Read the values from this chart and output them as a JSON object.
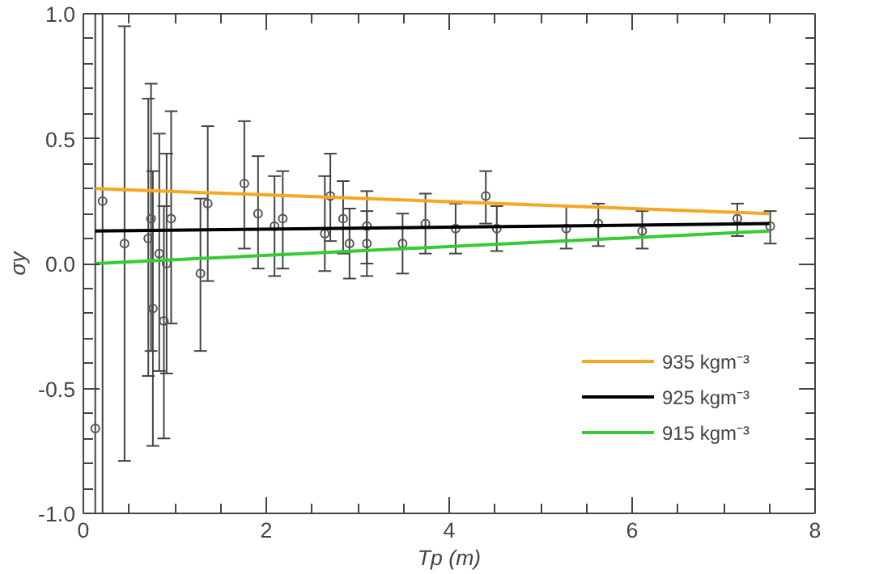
{
  "chart_data": {
    "type": "scatter",
    "xlabel": "Tp (m)",
    "ylabel": "σy",
    "xlim": [
      0,
      8
    ],
    "ylim": [
      -1.0,
      1.0
    ],
    "xticks": [
      0,
      {
        "value": 0.5,
        "label": null
      },
      {
        "value": 1,
        "label": null
      },
      {
        "value": 1.5,
        "label": null
      },
      2,
      {
        "value": 2.5,
        "label": null
      },
      {
        "value": 3,
        "label": null
      },
      {
        "value": 3.5,
        "label": null
      },
      4,
      {
        "value": 4.5,
        "label": null
      },
      {
        "value": 5,
        "label": null
      },
      {
        "value": 5.5,
        "label": null
      },
      6,
      {
        "value": 6.5,
        "label": null
      },
      {
        "value": 7,
        "label": null
      },
      {
        "value": 7.5,
        "label": null
      },
      8
    ],
    "yticks": [
      {
        "value": -1.0,
        "label": "-1.0"
      },
      {
        "value": -0.9,
        "label": null
      },
      {
        "value": -0.8,
        "label": null
      },
      {
        "value": -0.7,
        "label": null
      },
      {
        "value": -0.6,
        "label": null
      },
      {
        "value": -0.5,
        "label": "-0.5"
      },
      {
        "value": -0.4,
        "label": null
      },
      {
        "value": -0.3,
        "label": null
      },
      {
        "value": -0.2,
        "label": null
      },
      {
        "value": -0.1,
        "label": null
      },
      {
        "value": 0.0,
        "label": "0.0"
      },
      {
        "value": 0.1,
        "label": null
      },
      {
        "value": 0.2,
        "label": null
      },
      {
        "value": 0.3,
        "label": null
      },
      {
        "value": 0.4,
        "label": null
      },
      {
        "value": 0.5,
        "label": "0.5"
      },
      {
        "value": 0.6,
        "label": null
      },
      {
        "value": 0.7,
        "label": null
      },
      {
        "value": 0.8,
        "label": null
      },
      {
        "value": 0.9,
        "label": null
      },
      {
        "value": 1.0,
        "label": "1.0"
      }
    ],
    "grid": false,
    "legend": "bottom right",
    "series": [
      {
        "color": "#555555",
        "marker": "circle",
        "x": [
          0.13,
          0.21,
          0.45,
          0.71,
          0.74,
          0.76,
          0.83,
          0.88,
          0.91,
          0.96,
          1.28,
          1.36,
          1.76,
          1.91,
          2.09,
          2.18,
          2.64,
          2.7,
          2.84,
          2.91,
          3.1,
          3.1,
          3.49,
          3.74,
          4.07,
          4.4,
          4.52,
          5.28,
          5.63,
          6.11,
          7.15,
          7.51
        ],
        "values": [
          -0.66,
          0.25,
          0.08,
          0.1,
          0.18,
          -0.18,
          0.04,
          -0.23,
          0.0,
          0.18,
          -0.04,
          0.24,
          0.32,
          0.2,
          0.15,
          0.18,
          0.12,
          0.27,
          0.18,
          0.08,
          0.15,
          0.08,
          0.08,
          0.16,
          0.14,
          0.27,
          0.14,
          0.14,
          0.16,
          0.13,
          0.18,
          0.15
        ],
        "errors": [
          [
            -1.0,
            1.0
          ],
          [
            -1.0,
            1.0
          ],
          [
            -0.79,
            0.95
          ],
          [
            -0.45,
            0.66
          ],
          [
            -0.35,
            0.72
          ],
          [
            -0.73,
            0.37
          ],
          [
            -0.43,
            0.52
          ],
          [
            -0.7,
            0.23
          ],
          [
            -0.44,
            0.44
          ],
          [
            -0.24,
            0.61
          ],
          [
            -0.35,
            0.26
          ],
          [
            -0.07,
            0.55
          ],
          [
            0.06,
            0.57
          ],
          [
            -0.02,
            0.43
          ],
          [
            -0.05,
            0.35
          ],
          [
            -0.02,
            0.37
          ],
          [
            -0.03,
            0.35
          ],
          [
            0.09,
            0.44
          ],
          [
            0.04,
            0.33
          ],
          [
            -0.06,
            0.22
          ],
          [
            0.0,
            0.29
          ],
          [
            -0.05,
            0.21
          ],
          [
            -0.04,
            0.2
          ],
          [
            0.04,
            0.28
          ],
          [
            0.04,
            0.24
          ],
          [
            0.16,
            0.37
          ],
          [
            0.05,
            0.23
          ],
          [
            0.06,
            0.23
          ],
          [
            0.07,
            0.24
          ],
          [
            0.06,
            0.21
          ],
          [
            0.11,
            0.24
          ],
          [
            0.08,
            0.21
          ]
        ]
      },
      {
        "type": "line",
        "name": "935 kgm⁻³",
        "color": "#f5a623",
        "x": [
          0.13,
          7.5
        ],
        "values": [
          0.3,
          0.2
        ]
      },
      {
        "type": "line",
        "name": "925 kgm⁻³",
        "color": "#000000",
        "x": [
          0.13,
          7.5
        ],
        "values": [
          0.13,
          0.16
        ]
      },
      {
        "type": "line",
        "name": "915 kgm⁻³",
        "color": "#33cc33",
        "x": [
          0.13,
          7.5
        ],
        "values": [
          0.0,
          0.13
        ]
      }
    ]
  }
}
